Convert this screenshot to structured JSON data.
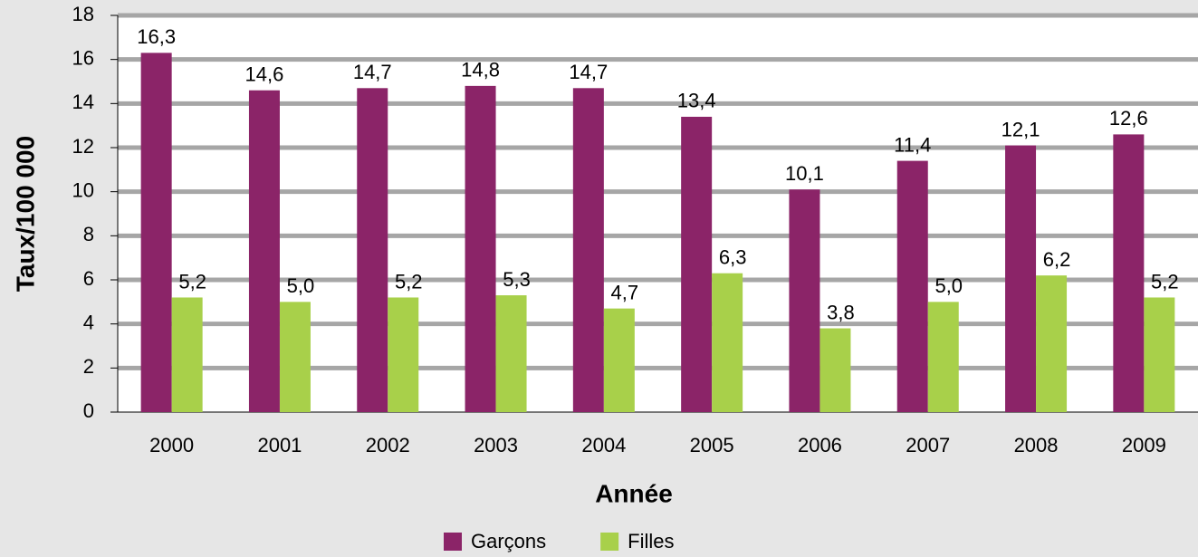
{
  "chart_data": {
    "type": "bar",
    "x_label": "Année",
    "y_label": "Taux/100 000",
    "categories": [
      "2000",
      "2001",
      "2002",
      "2003",
      "2004",
      "2005",
      "2006",
      "2007",
      "2008",
      "2009"
    ],
    "series": [
      {
        "name": "Garçons",
        "color": "#8b2468",
        "values": [
          16.3,
          14.6,
          14.7,
          14.8,
          14.7,
          13.4,
          10.1,
          11.4,
          12.1,
          12.6
        ],
        "value_labels": [
          "16,3",
          "14,6",
          "14,7",
          "14,8",
          "14,7",
          "13,4",
          "10,1",
          "11,4",
          "12,1",
          "12,6"
        ]
      },
      {
        "name": "Filles",
        "color": "#a8d04a",
        "values": [
          5.2,
          5.0,
          5.2,
          5.3,
          4.7,
          6.3,
          3.8,
          5.0,
          6.2,
          5.2
        ],
        "value_labels": [
          "5,2",
          "5,0",
          "5,2",
          "5,3",
          "4,7",
          "6,3",
          "3,8",
          "5,0",
          "6,2",
          "5,2"
        ]
      }
    ],
    "ylim": [
      0,
      18
    ],
    "yticks": [
      0,
      2,
      4,
      6,
      8,
      10,
      12,
      14,
      16,
      18
    ],
    "grid": true,
    "legend": "bottom"
  }
}
